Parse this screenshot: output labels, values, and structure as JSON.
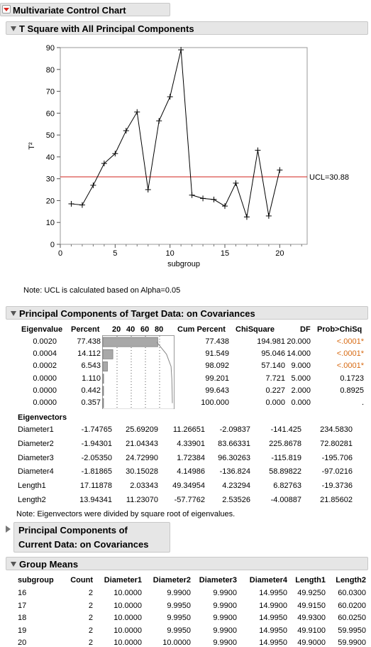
{
  "titles": {
    "main": "Multivariate Control Chart",
    "tsquare": "T Square with All Principal Components",
    "pc_target": "Principal Components of Target Data: on Covariances",
    "pc_current_line1": "Principal Components of",
    "pc_current_line2": "Current Data: on Covariances",
    "group_means": "Group Means"
  },
  "notes": {
    "ucl": "Note: UCL is calculated based on Alpha=0.05",
    "eigvec": "Note: Eigenvectors were divided by square root of eigenvalues."
  },
  "chart_data": {
    "type": "line",
    "xlabel": "subgroup",
    "ylabel": "T²",
    "xlim": [
      0,
      22.5
    ],
    "ylim": [
      0,
      90
    ],
    "xticks": [
      0,
      5,
      10,
      15,
      20
    ],
    "yticks": [
      0,
      10,
      20,
      30,
      40,
      50,
      60,
      70,
      80,
      90
    ],
    "ucl": 30.88,
    "ucl_label": "UCL=30.88",
    "series": [
      {
        "x": [
          1,
          2,
          3,
          4,
          5,
          6,
          7,
          8,
          9,
          10,
          11,
          12,
          13,
          14,
          15,
          16,
          17,
          18,
          19,
          20
        ],
        "values": [
          18.5,
          18,
          27,
          37,
          41.5,
          52,
          60.5,
          25,
          56.5,
          67.5,
          89,
          22.5,
          21,
          20.5,
          17.5,
          28,
          12.5,
          43,
          13,
          34
        ]
      }
    ]
  },
  "pc_table": {
    "headers": {
      "eigenvalue": "Eigenvalue",
      "percent": "Percent",
      "bar_ticks": [
        "20",
        "40",
        "60",
        "80"
      ],
      "cum": "Cum Percent",
      "chisq": "ChiSquare",
      "df": "DF",
      "prob": "Prob>ChiSq"
    },
    "rows": [
      {
        "eig": "0.0020",
        "pct": "77.438",
        "cum": "77.438",
        "chi": "194.981",
        "df": "20.000",
        "p": "<.0001*",
        "pv": 77.438,
        "sig": true
      },
      {
        "eig": "0.0004",
        "pct": "14.112",
        "cum": "91.549",
        "chi": "95.046",
        "df": "14.000",
        "p": "<.0001*",
        "pv": 14.112,
        "sig": true
      },
      {
        "eig": "0.0002",
        "pct": "6.543",
        "cum": "98.092",
        "chi": "57.140",
        "df": "9.000",
        "p": "<.0001*",
        "pv": 6.543,
        "sig": true
      },
      {
        "eig": "0.0000",
        "pct": "1.110",
        "cum": "99.201",
        "chi": "7.721",
        "df": "5.000",
        "p": "0.1723",
        "pv": 1.11,
        "sig": false
      },
      {
        "eig": "0.0000",
        "pct": "0.442",
        "cum": "99.643",
        "chi": "0.227",
        "df": "2.000",
        "p": "0.8925",
        "pv": 0.442,
        "sig": false
      },
      {
        "eig": "0.0000",
        "pct": "0.357",
        "cum": "100.000",
        "chi": "0.000",
        "df": "0.000",
        "p": ".",
        "pv": 0.357,
        "sig": false
      }
    ]
  },
  "eigenvectors": {
    "title": "Eigenvectors",
    "rows": [
      {
        "name": "Diameter1",
        "v": [
          "-1.74765",
          "25.69209",
          "11.26651",
          "-2.09837",
          "-141.425",
          "234.5830"
        ]
      },
      {
        "name": "Diameter2",
        "v": [
          "-1.94301",
          "21.04343",
          "4.33901",
          "83.66331",
          "225.8678",
          "72.80281"
        ]
      },
      {
        "name": "Diameter3",
        "v": [
          "-2.05350",
          "24.72990",
          "1.72384",
          "96.30263",
          "-115.819",
          "-195.706"
        ]
      },
      {
        "name": "Diameter4",
        "v": [
          "-1.81865",
          "30.15028",
          "4.14986",
          "-136.824",
          "58.89822",
          "-97.0216"
        ]
      },
      {
        "name": "Length1",
        "v": [
          "17.11878",
          "2.03343",
          "49.34954",
          "4.23294",
          "6.82763",
          "-19.3736"
        ]
      },
      {
        "name": "Length2",
        "v": [
          "13.94341",
          "11.23070",
          "-57.7762",
          "2.53526",
          "-4.00887",
          "21.85602"
        ]
      }
    ]
  },
  "group_means": {
    "headers": [
      "subgroup",
      "Count",
      "Diameter1",
      "Diameter2",
      "Diameter3",
      "Diameter4",
      "Length1",
      "Length2"
    ],
    "rows": [
      [
        "16",
        "2",
        "10.0000",
        "9.9900",
        "9.9900",
        "14.9950",
        "49.9250",
        "60.0300"
      ],
      [
        "17",
        "2",
        "10.0000",
        "9.9950",
        "9.9900",
        "14.9900",
        "49.9150",
        "60.0200"
      ],
      [
        "18",
        "2",
        "10.0000",
        "9.9950",
        "9.9900",
        "14.9950",
        "49.9300",
        "60.0250"
      ],
      [
        "19",
        "2",
        "10.0000",
        "9.9950",
        "9.9900",
        "14.9950",
        "49.9100",
        "59.9950"
      ],
      [
        "20",
        "2",
        "10.0000",
        "10.0000",
        "9.9900",
        "14.9950",
        "49.9000",
        "59.9900"
      ]
    ]
  },
  "colors": {
    "ucl_line": "#d0231d",
    "significant": "#d86a12",
    "bar_fill": "#a8a8a8"
  }
}
